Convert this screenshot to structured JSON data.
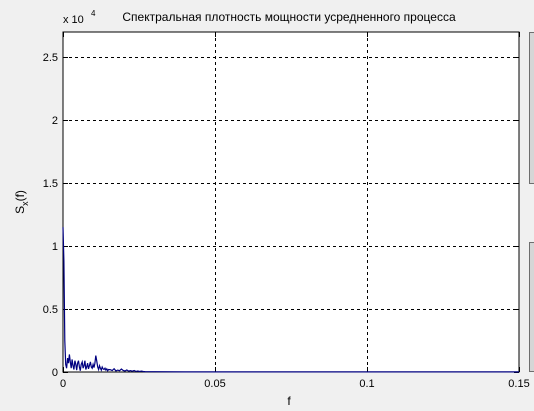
{
  "chart_data": {
    "type": "line",
    "title": "Спектральная плотность мощности усредненного процесса",
    "xlabel": "f",
    "ylabel_main": "S",
    "ylabel_sub": "x",
    "ylabel_tail": "(f)",
    "exponent_base": "x 10",
    "exponent_power": "4",
    "xlim": [
      0,
      0.15
    ],
    "ylim": [
      0,
      27000
    ],
    "xticks": [
      0,
      0.05,
      0.1,
      0.15
    ],
    "xtick_labels": [
      "0",
      "0.05",
      "0.1",
      "0.15"
    ],
    "yticks": [
      0,
      5000,
      10000,
      15000,
      20000,
      25000
    ],
    "ytick_labels": [
      "0",
      "0.5",
      "1",
      "1.5",
      "2",
      "2.5"
    ],
    "grid": true,
    "grid_style": "dashed",
    "line_color": "#000080",
    "series": [
      {
        "x": [
          0,
          0.0003,
          0.0006,
          0.0009,
          0.0012,
          0.0015,
          0.0018,
          0.0021,
          0.0024,
          0.0027,
          0.003,
          0.0033,
          0.0036,
          0.0039,
          0.0042,
          0.0045,
          0.0048,
          0.0051,
          0.0054,
          0.0057,
          0.006,
          0.0063,
          0.0066,
          0.0069,
          0.0072,
          0.0075,
          0.0078,
          0.0081,
          0.0084,
          0.0087,
          0.009,
          0.0093,
          0.0096,
          0.0099,
          0.0102,
          0.0105,
          0.0108,
          0.0111,
          0.0114,
          0.0117,
          0.012,
          0.0123,
          0.0126,
          0.0129,
          0.0132,
          0.0135,
          0.0138,
          0.0141,
          0.0144,
          0.0147,
          0.015,
          0.0156,
          0.0162,
          0.0168,
          0.0174,
          0.018,
          0.0186,
          0.0192,
          0.0198,
          0.0204,
          0.021,
          0.0216,
          0.0222,
          0.0228,
          0.0234,
          0.024,
          0.0246,
          0.0252,
          0.0258,
          0.0264,
          0.027,
          0.03,
          0.04,
          0.05,
          0.06,
          0.08,
          0.1,
          0.12,
          0.14,
          0.15
        ],
        "y": [
          11500,
          8800,
          2500,
          600,
          300,
          1100,
          700,
          1400,
          800,
          300,
          1000,
          500,
          200,
          900,
          600,
          150,
          700,
          900,
          400,
          100,
          600,
          800,
          300,
          500,
          900,
          200,
          400,
          700,
          250,
          500,
          800,
          400,
          300,
          600,
          350,
          700,
          1300,
          900,
          400,
          200,
          500,
          300,
          150,
          400,
          250,
          200,
          300,
          150,
          250,
          100,
          200,
          180,
          120,
          260,
          90,
          150,
          100,
          240,
          120,
          80,
          160,
          70,
          110,
          60,
          120,
          50,
          80,
          40,
          70,
          40,
          30,
          20,
          10,
          10,
          5,
          5,
          5,
          5,
          5,
          5
        ]
      }
    ]
  }
}
